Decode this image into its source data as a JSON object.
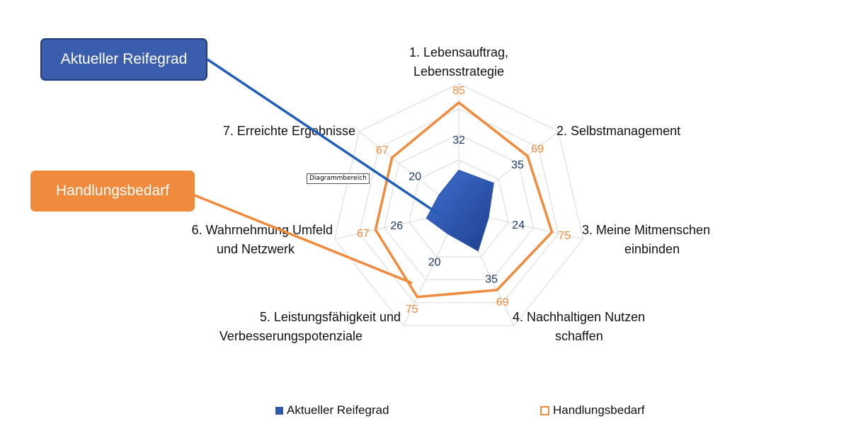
{
  "callouts": {
    "current": "Aktueller Reifegrad",
    "need": "Handlungsbedarf"
  },
  "chart_area_tag": "Diagrammbereich",
  "chart_data": {
    "type": "radar",
    "categories": [
      [
        "1. Lebensauftrag,",
        "Lebensstrategie"
      ],
      [
        "2. Selbstmanagement"
      ],
      [
        "3. Meine Mitmenschen",
        "einbinden"
      ],
      [
        "4. Nachhaltigen Nutzen",
        "schaffen"
      ],
      [
        "5. Leistungsfähigkeit und",
        "Verbesserungspotenziale"
      ],
      [
        "6. Wahrnehmung Umfeld",
        "und Netzwerk"
      ],
      [
        "7. Erreichte Ergebnisse"
      ]
    ],
    "series": [
      {
        "name": "Aktueller Reifegrad",
        "values": [
          32,
          35,
          24,
          35,
          20,
          26,
          20
        ],
        "color": "#2e57ad",
        "style": "filled"
      },
      {
        "name": "Handlungsbedarf",
        "values": [
          85,
          69,
          75,
          69,
          75,
          67,
          67
        ],
        "color": "#f08a3c",
        "style": "line"
      }
    ],
    "rlim": [
      0,
      100
    ],
    "grid": true,
    "legend": "bottom"
  },
  "legend": {
    "current": "Aktueller Reifegrad",
    "need": "Handlungsbedarf"
  }
}
